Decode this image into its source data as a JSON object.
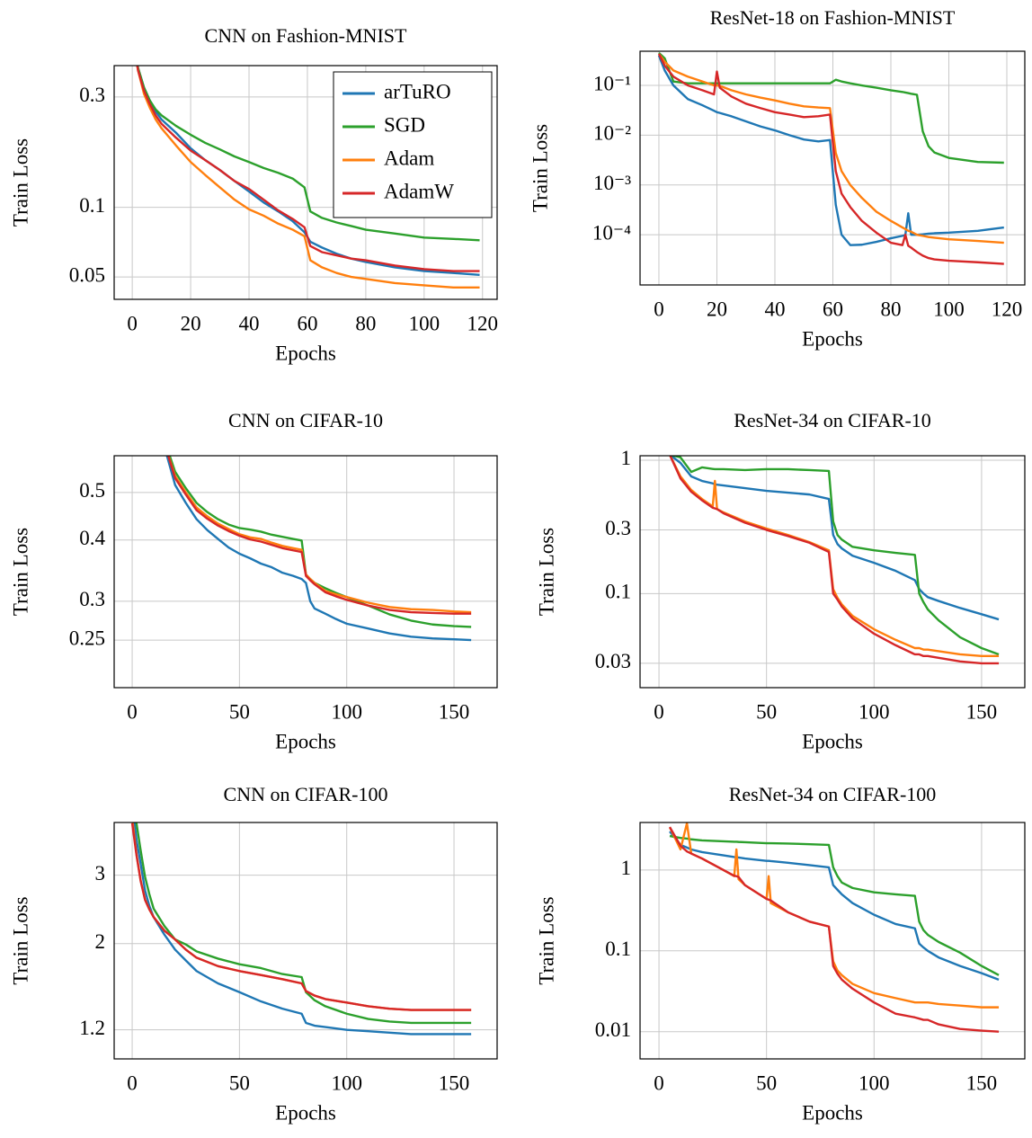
{
  "chart_data": [
    {
      "type": "line",
      "title": "CNN on Fashion-MNIST",
      "xlabel": "Epochs",
      "ylabel": "Train Loss",
      "yscale": "log",
      "grid": true,
      "legend": "upper right",
      "xlim": [
        -6.2,
        125
      ],
      "xticks": [
        0,
        20,
        40,
        60,
        80,
        100,
        120
      ],
      "ylim": [
        0.04,
        0.41
      ],
      "yticks": [
        0.3,
        0.1,
        0.05
      ],
      "x": [
        0,
        2,
        4,
        6,
        8,
        10,
        15,
        20,
        25,
        30,
        35,
        40,
        45,
        50,
        55,
        59,
        61,
        65,
        70,
        75,
        80,
        90,
        100,
        110,
        119
      ],
      "series": [
        {
          "name": "arTuRO",
          "color": "#1f77b4",
          "values": [
            0.55,
            0.4,
            0.33,
            0.29,
            0.26,
            0.24,
            0.21,
            0.18,
            0.16,
            0.145,
            0.13,
            0.117,
            0.105,
            0.096,
            0.087,
            0.078,
            0.071,
            0.067,
            0.063,
            0.06,
            0.058,
            0.055,
            0.053,
            0.052,
            0.051
          ]
        },
        {
          "name": "SGD",
          "color": "#2ca02c",
          "values": [
            0.55,
            0.4,
            0.33,
            0.29,
            0.265,
            0.25,
            0.225,
            0.206,
            0.19,
            0.178,
            0.166,
            0.157,
            0.148,
            0.141,
            0.133,
            0.122,
            0.096,
            0.09,
            0.086,
            0.083,
            0.08,
            0.077,
            0.074,
            0.073,
            0.072
          ]
        },
        {
          "name": "Adam",
          "color": "#ff7f0e",
          "values": [
            0.55,
            0.39,
            0.31,
            0.27,
            0.24,
            0.22,
            0.185,
            0.157,
            0.138,
            0.122,
            0.108,
            0.098,
            0.092,
            0.085,
            0.08,
            0.075,
            0.059,
            0.055,
            0.052,
            0.05,
            0.049,
            0.047,
            0.046,
            0.045,
            0.045
          ]
        },
        {
          "name": "AdamW",
          "color": "#d62728",
          "values": [
            0.55,
            0.39,
            0.32,
            0.28,
            0.25,
            0.23,
            0.2,
            0.176,
            0.16,
            0.145,
            0.13,
            0.12,
            0.108,
            0.097,
            0.089,
            0.082,
            0.068,
            0.064,
            0.062,
            0.06,
            0.059,
            0.056,
            0.054,
            0.053,
            0.053
          ]
        }
      ]
    },
    {
      "type": "line",
      "title": "ResNet-18 on Fashion-MNIST",
      "xlabel": "Epochs",
      "ylabel": "Train Loss",
      "yscale": "log",
      "grid": true,
      "xlim": [
        -6.5,
        126.2
      ],
      "xticks": [
        0,
        20,
        40,
        60,
        80,
        100,
        120
      ],
      "ylim": [
        9.8e-06,
        0.486
      ],
      "yticks": [
        {
          "value": 0.1,
          "label": "10⁻¹"
        },
        {
          "value": 0.01,
          "label": "10⁻²"
        },
        {
          "value": 0.001,
          "label": "10⁻³"
        },
        {
          "value": 0.0001,
          "label": "10⁻⁴"
        }
      ],
      "x": [
        0,
        2,
        5,
        10,
        15,
        19,
        20,
        21,
        25,
        30,
        35,
        40,
        45,
        50,
        55,
        59,
        61,
        63,
        66,
        70,
        75,
        80,
        84,
        85,
        86,
        87,
        89,
        91,
        93,
        95,
        100,
        110,
        119
      ],
      "series": [
        {
          "color": "#1f77b4",
          "values": [
            0.4,
            0.2,
            0.1,
            0.053,
            0.04,
            0.031,
            0.029,
            0.028,
            0.024,
            0.019,
            0.015,
            0.0125,
            0.01,
            0.0082,
            0.0075,
            0.008,
            0.0004,
            0.0001,
            6.2e-05,
            6.3e-05,
            7.2e-05,
            8.5e-05,
            9.5e-05,
            9.9e-05,
            0.00027,
            0.0001,
            0.0001,
            0.000102,
            0.000105,
            0.000107,
            0.00011,
            0.00012,
            0.00014
          ]
        },
        {
          "color": "#2ca02c",
          "values": [
            0.45,
            0.35,
            0.12,
            0.11,
            0.11,
            0.11,
            0.11,
            0.11,
            0.11,
            0.11,
            0.11,
            0.11,
            0.11,
            0.11,
            0.11,
            0.11,
            0.13,
            0.12,
            0.11,
            0.1,
            0.09,
            0.08,
            0.074,
            0.072,
            0.07,
            0.068,
            0.065,
            0.012,
            0.006,
            0.0045,
            0.0035,
            0.0029,
            0.0028
          ]
        },
        {
          "color": "#ff7f0e",
          "values": [
            0.43,
            0.3,
            0.2,
            0.15,
            0.12,
            0.1,
            0.1,
            0.098,
            0.08,
            0.066,
            0.057,
            0.05,
            0.043,
            0.038,
            0.036,
            0.035,
            0.0044,
            0.0019,
            0.001,
            0.00055,
            0.00029,
            0.00019,
            0.00014,
            0.00013,
            0.00012,
            0.000115,
            0.0001,
            9.5e-05,
            9e-05,
            8.7e-05,
            8.1e-05,
            7.5e-05,
            6.9e-05
          ]
        },
        {
          "color": "#d62728",
          "values": [
            0.43,
            0.25,
            0.15,
            0.1,
            0.08,
            0.066,
            0.19,
            0.09,
            0.06,
            0.043,
            0.035,
            0.029,
            0.026,
            0.023,
            0.024,
            0.026,
            0.0019,
            0.00067,
            0.00036,
            0.00019,
            0.00011,
            6.9e-05,
            6.2e-05,
            0.0001,
            6e-05,
            5.5e-05,
            4.5e-05,
            3.8e-05,
            3.4e-05,
            3.2e-05,
            3e-05,
            2.8e-05,
            2.6e-05
          ]
        }
      ]
    },
    {
      "type": "line",
      "title": "CNN on CIFAR-10",
      "xlabel": "Epochs",
      "ylabel": "Train Loss",
      "yscale": "log",
      "grid": true,
      "xlim": [
        -8.4,
        170.1
      ],
      "xticks": [
        0,
        50,
        100,
        150
      ],
      "ylim": [
        0.2,
        0.594
      ],
      "yticks": [
        0.5,
        0.4,
        0.3,
        0.25
      ],
      "x": [
        15,
        20,
        25,
        30,
        35,
        40,
        45,
        50,
        55,
        60,
        65,
        70,
        75,
        79,
        81,
        83,
        85,
        90,
        95,
        100,
        110,
        120,
        130,
        140,
        150,
        158
      ],
      "series": [
        {
          "color": "#1f77b4",
          "values": [
            0.62,
            0.518,
            0.476,
            0.441,
            0.419,
            0.402,
            0.386,
            0.375,
            0.367,
            0.358,
            0.352,
            0.343,
            0.338,
            0.333,
            0.327,
            0.3,
            0.29,
            0.283,
            0.276,
            0.27,
            0.264,
            0.258,
            0.254,
            0.252,
            0.251,
            0.25
          ]
        },
        {
          "color": "#2ca02c",
          "values": [
            0.64,
            0.551,
            0.51,
            0.476,
            0.456,
            0.441,
            0.43,
            0.423,
            0.42,
            0.416,
            0.41,
            0.406,
            0.402,
            0.399,
            0.34,
            0.333,
            0.327,
            0.319,
            0.312,
            0.306,
            0.294,
            0.282,
            0.274,
            0.269,
            0.267,
            0.266
          ]
        },
        {
          "color": "#ff7f0e",
          "values": [
            0.63,
            0.54,
            0.5,
            0.466,
            0.447,
            0.432,
            0.421,
            0.411,
            0.405,
            0.402,
            0.395,
            0.389,
            0.385,
            0.382,
            0.34,
            0.333,
            0.327,
            0.315,
            0.31,
            0.306,
            0.298,
            0.292,
            0.289,
            0.288,
            0.286,
            0.285
          ]
        },
        {
          "color": "#d62728",
          "values": [
            0.63,
            0.535,
            0.495,
            0.46,
            0.442,
            0.428,
            0.417,
            0.408,
            0.401,
            0.397,
            0.391,
            0.385,
            0.381,
            0.378,
            0.338,
            0.331,
            0.325,
            0.313,
            0.307,
            0.302,
            0.294,
            0.288,
            0.285,
            0.284,
            0.283,
            0.283
          ]
        }
      ]
    },
    {
      "type": "line",
      "title": "ResNet-34 on CIFAR-10",
      "xlabel": "Epochs",
      "ylabel": "Train Loss",
      "yscale": "log",
      "grid": true,
      "xlim": [
        -8.8,
        170.1
      ],
      "xticks": [
        0,
        50,
        100,
        150
      ],
      "ylim": [
        0.0197,
        1.08
      ],
      "yticks": [
        1,
        0.3,
        0.1,
        0.03
      ],
      "x": [
        5,
        10,
        15,
        20,
        25,
        26,
        27,
        30,
        40,
        50,
        60,
        70,
        79,
        81,
        83,
        85,
        90,
        100,
        110,
        119,
        121,
        123,
        125,
        130,
        140,
        150,
        158
      ],
      "series": [
        {
          "color": "#1f77b4",
          "values": [
            1.1,
            0.954,
            0.756,
            0.699,
            0.67,
            0.66,
            0.655,
            0.647,
            0.617,
            0.589,
            0.571,
            0.553,
            0.512,
            0.275,
            0.235,
            0.218,
            0.192,
            0.17,
            0.148,
            0.126,
            0.108,
            0.1,
            0.094,
            0.088,
            0.078,
            0.07,
            0.064
          ]
        },
        {
          "color": "#2ca02c",
          "values": [
            1.1,
            1.05,
            0.817,
            0.883,
            0.86,
            0.856,
            0.856,
            0.856,
            0.843,
            0.856,
            0.856,
            0.843,
            0.83,
            0.347,
            0.275,
            0.254,
            0.224,
            0.211,
            0.202,
            0.195,
            0.1,
            0.086,
            0.076,
            0.063,
            0.047,
            0.039,
            0.035
          ]
        },
        {
          "color": "#ff7f0e",
          "values": [
            1.1,
            0.756,
            0.598,
            0.512,
            0.45,
            0.7,
            0.43,
            0.406,
            0.347,
            0.307,
            0.275,
            0.243,
            0.211,
            0.108,
            0.093,
            0.083,
            0.068,
            0.054,
            0.045,
            0.039,
            0.039,
            0.038,
            0.038,
            0.037,
            0.035,
            0.034,
            0.034
          ]
        },
        {
          "color": "#d62728",
          "values": [
            1.1,
            0.73,
            0.58,
            0.5,
            0.44,
            0.435,
            0.43,
            0.4,
            0.34,
            0.3,
            0.27,
            0.24,
            0.205,
            0.1,
            0.09,
            0.08,
            0.065,
            0.05,
            0.041,
            0.035,
            0.035,
            0.034,
            0.034,
            0.033,
            0.031,
            0.03,
            0.03
          ]
        }
      ]
    },
    {
      "type": "line",
      "title": "CNN on CIFAR-100",
      "xlabel": "Epochs",
      "ylabel": "Train Loss",
      "yscale": "log",
      "grid": true,
      "xlim": [
        -8.4,
        170.1
      ],
      "xticks": [
        0,
        50,
        100,
        150
      ],
      "ylim": [
        1.01,
        4.1
      ],
      "yticks": [
        3,
        2,
        1.2
      ],
      "x": [
        0,
        2,
        4,
        6,
        8,
        10,
        15,
        20,
        25,
        30,
        40,
        50,
        60,
        70,
        79,
        81,
        85,
        90,
        100,
        110,
        120,
        130,
        140,
        150,
        158
      ],
      "series": [
        {
          "color": "#1f77b4",
          "values": [
            4.6,
            3.7,
            3.2,
            2.74,
            2.5,
            2.34,
            2.11,
            1.93,
            1.81,
            1.7,
            1.58,
            1.5,
            1.42,
            1.36,
            1.32,
            1.25,
            1.23,
            1.22,
            1.2,
            1.19,
            1.18,
            1.17,
            1.17,
            1.17,
            1.17
          ]
        },
        {
          "color": "#2ca02c",
          "values": [
            5,
            4.08,
            3.46,
            2.97,
            2.68,
            2.46,
            2.22,
            2.05,
            1.99,
            1.91,
            1.83,
            1.77,
            1.73,
            1.67,
            1.64,
            1.5,
            1.43,
            1.38,
            1.32,
            1.28,
            1.26,
            1.25,
            1.25,
            1.25,
            1.25
          ]
        },
        {
          "color": "#ff7f0e",
          "values": [
            4.2,
            3.4,
            2.9,
            2.6,
            2.45,
            2.34,
            2.16,
            2.05,
            1.93,
            1.84,
            1.75,
            1.7,
            1.66,
            1.62,
            1.58,
            1.51,
            1.47,
            1.44,
            1.41,
            1.38,
            1.36,
            1.35,
            1.35,
            1.35,
            1.35
          ]
        },
        {
          "color": "#d62728",
          "values": [
            4.08,
            3.38,
            2.89,
            2.59,
            2.45,
            2.34,
            2.16,
            2.05,
            1.93,
            1.84,
            1.75,
            1.7,
            1.66,
            1.62,
            1.58,
            1.51,
            1.47,
            1.44,
            1.41,
            1.38,
            1.36,
            1.35,
            1.35,
            1.35,
            1.35
          ]
        }
      ]
    },
    {
      "type": "line",
      "title": "ResNet-34 on CIFAR-100",
      "xlabel": "Epochs",
      "ylabel": "Train Loss",
      "yscale": "log",
      "grid": true,
      "xlim": [
        -8.8,
        170.1
      ],
      "xticks": [
        0,
        50,
        100,
        150
      ],
      "ylim": [
        0.0046,
        3.88
      ],
      "yticks": [
        1,
        0.1,
        0.01
      ],
      "x": [
        5,
        10,
        13,
        15,
        20,
        30,
        35,
        36,
        37,
        40,
        50,
        51,
        52,
        60,
        70,
        79,
        81,
        83,
        85,
        90,
        100,
        110,
        119,
        121,
        123,
        125,
        130,
        140,
        150,
        158
      ],
      "series": [
        {
          "color": "#1f77b4",
          "values": [
            3,
            2.05,
            1.9,
            1.8,
            1.67,
            1.52,
            1.45,
            1.44,
            1.43,
            1.39,
            1.3,
            1.3,
            1.29,
            1.23,
            1.15,
            1.08,
            0.65,
            0.57,
            0.5,
            0.39,
            0.28,
            0.215,
            0.19,
            0.123,
            0.11,
            0.1,
            0.083,
            0.065,
            0.053,
            0.044
          ]
        },
        {
          "color": "#2ca02c",
          "values": [
            2.64,
            2.5,
            2.45,
            2.4,
            2.33,
            2.27,
            2.24,
            2.24,
            2.23,
            2.21,
            2.15,
            2.15,
            2.15,
            2.13,
            2.09,
            2.05,
            1.08,
            0.84,
            0.7,
            0.6,
            0.53,
            0.5,
            0.48,
            0.23,
            0.18,
            0.158,
            0.129,
            0.095,
            0.065,
            0.05
          ]
        },
        {
          "color": "#ff7f0e",
          "values": [
            3.4,
            1.8,
            3.8,
            1.6,
            1.39,
            1.0,
            0.84,
            1.8,
            0.77,
            0.65,
            0.44,
            0.84,
            0.39,
            0.3,
            0.23,
            0.2,
            0.074,
            0.057,
            0.05,
            0.039,
            0.03,
            0.026,
            0.023,
            0.023,
            0.023,
            0.023,
            0.022,
            0.021,
            0.02,
            0.02
          ]
        },
        {
          "color": "#d62728",
          "values": [
            3.4,
            2.0,
            1.7,
            1.6,
            1.39,
            1.0,
            0.85,
            0.84,
            0.82,
            0.65,
            0.44,
            0.43,
            0.42,
            0.3,
            0.23,
            0.2,
            0.065,
            0.052,
            0.044,
            0.034,
            0.023,
            0.0167,
            0.015,
            0.0145,
            0.014,
            0.014,
            0.0123,
            0.0108,
            0.0103,
            0.01
          ]
        }
      ]
    }
  ]
}
